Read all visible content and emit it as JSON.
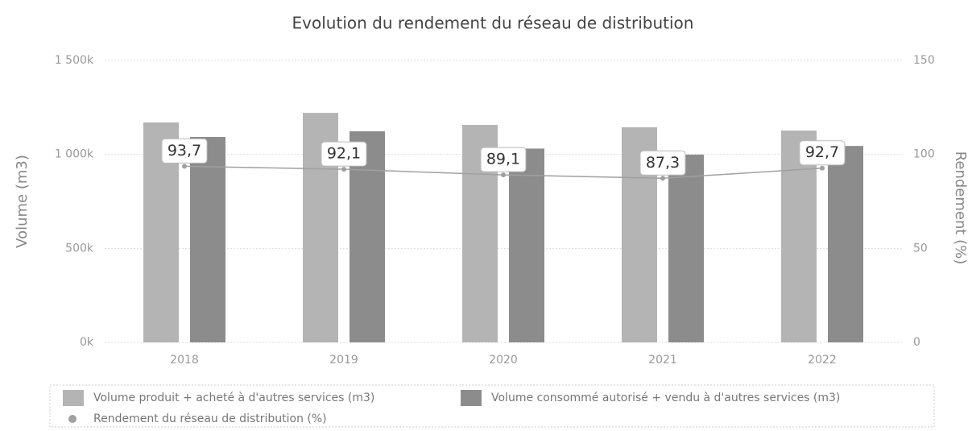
{
  "chart_data": {
    "type": "bar",
    "title": "Evolution du rendement du réseau de distribution",
    "ylabel": "Volume (m3)",
    "y2label": "Rendement (%)",
    "categories": [
      "2018",
      "2019",
      "2020",
      "2021",
      "2022"
    ],
    "series": [
      {
        "name": "Volume produit + acheté à d'autres services (m3)",
        "color": "#b4b4b4",
        "values": [
          1170000,
          1221000,
          1157000,
          1144000,
          1127000
        ]
      },
      {
        "name": "Volume consommé autorisé + vendu à d'autres services (m3)",
        "color": "#8c8c8c",
        "values": [
          1093000,
          1123000,
          1031000,
          999000,
          1045000
        ]
      },
      {
        "name": "Rendement du réseau de distribution (%)",
        "type": "line",
        "axis": "y2",
        "color": "#a0a0a0",
        "values": [
          93.7,
          92.1,
          89.1,
          87.3,
          92.7
        ],
        "value_labels": [
          "93,7",
          "92,1",
          "89,1",
          "87,3",
          "92,7"
        ]
      }
    ],
    "ylim": [
      0,
      1500000
    ],
    "yticks": [
      {
        "value": 0,
        "label": "0k"
      },
      {
        "value": 500000,
        "label": "500k"
      },
      {
        "value": 1000000,
        "label": "1 000k"
      },
      {
        "value": 1500000,
        "label": "1 500k"
      }
    ],
    "y2lim": [
      0,
      150
    ],
    "y2ticks": [
      0,
      50,
      100,
      150
    ],
    "grid": true,
    "legend": "bottom"
  }
}
